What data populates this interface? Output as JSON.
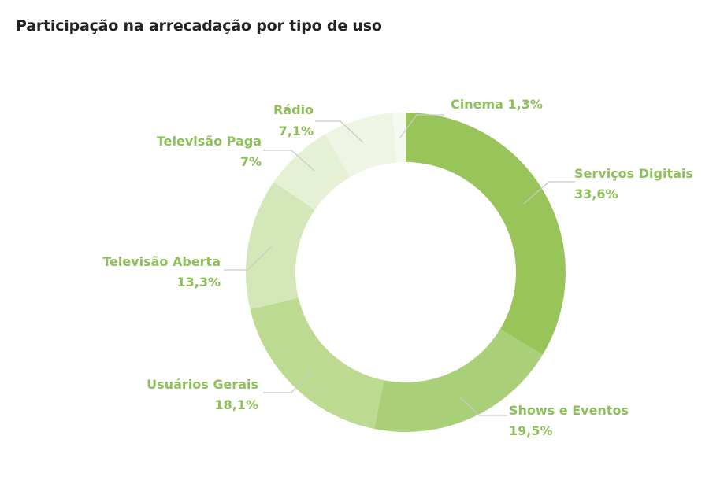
{
  "chart_data": {
    "type": "pie",
    "title": "Participação na arrecadação por tipo de uso",
    "label_color": "#8dc05a",
    "leader_color": "#c9c9c9",
    "slices": [
      {
        "name": "Serviços Digitais",
        "value": 33.6,
        "display": "33,6%",
        "color": "#99c45a"
      },
      {
        "name": "Shows e Eventos",
        "value": 19.5,
        "display": "19,5%",
        "color": "#a9cf78"
      },
      {
        "name": "Usuários Gerais",
        "value": 18.1,
        "display": "18,1%",
        "color": "#bcda90"
      },
      {
        "name": "Televisão Aberta",
        "value": 13.3,
        "display": "13,3%",
        "color": "#d3e7b8"
      },
      {
        "name": "Televisão Paga",
        "value": 7,
        "display": "7%",
        "color": "#e5f0d5"
      },
      {
        "name": "Rádio",
        "value": 7.1,
        "display": "7,1%",
        "color": "#eef5e4"
      },
      {
        "name": "Cinema",
        "value": 1.3,
        "display": "1,3%",
        "color": "#f5f9ef"
      }
    ]
  }
}
